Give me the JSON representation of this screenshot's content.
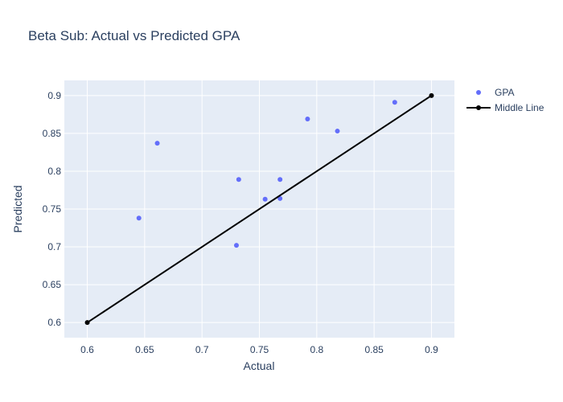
{
  "chart_data": {
    "type": "scatter",
    "title": "Beta Sub: Actual vs Predicted GPA",
    "xlabel": "Actual",
    "ylabel": "Predicted",
    "xlim": [
      0.58,
      0.92
    ],
    "ylim": [
      0.58,
      0.92
    ],
    "x_ticks": [
      0.6,
      0.65,
      0.7,
      0.75,
      0.8,
      0.85,
      0.9
    ],
    "y_ticks": [
      0.6,
      0.65,
      0.7,
      0.75,
      0.8,
      0.85,
      0.9
    ],
    "x_tick_labels": [
      "0.6",
      "0.65",
      "0.7",
      "0.75",
      "0.8",
      "0.85",
      "0.9"
    ],
    "y_tick_labels": [
      "0.6",
      "0.65",
      "0.7",
      "0.75",
      "0.8",
      "0.85",
      "0.9"
    ],
    "grid": true,
    "legend_position": "top-right",
    "series": [
      {
        "name": "GPA",
        "mode": "markers",
        "color": "#636efa",
        "points": [
          {
            "x": 0.645,
            "y": 0.738
          },
          {
            "x": 0.661,
            "y": 0.837
          },
          {
            "x": 0.73,
            "y": 0.702
          },
          {
            "x": 0.732,
            "y": 0.789
          },
          {
            "x": 0.755,
            "y": 0.763
          },
          {
            "x": 0.768,
            "y": 0.789
          },
          {
            "x": 0.768,
            "y": 0.764
          },
          {
            "x": 0.792,
            "y": 0.869
          },
          {
            "x": 0.818,
            "y": 0.853
          },
          {
            "x": 0.868,
            "y": 0.891
          }
        ]
      },
      {
        "name": "Middle Line",
        "mode": "lines+markers",
        "color": "#000000",
        "points": [
          {
            "x": 0.6,
            "y": 0.6
          },
          {
            "x": 0.9,
            "y": 0.9
          }
        ]
      }
    ]
  }
}
